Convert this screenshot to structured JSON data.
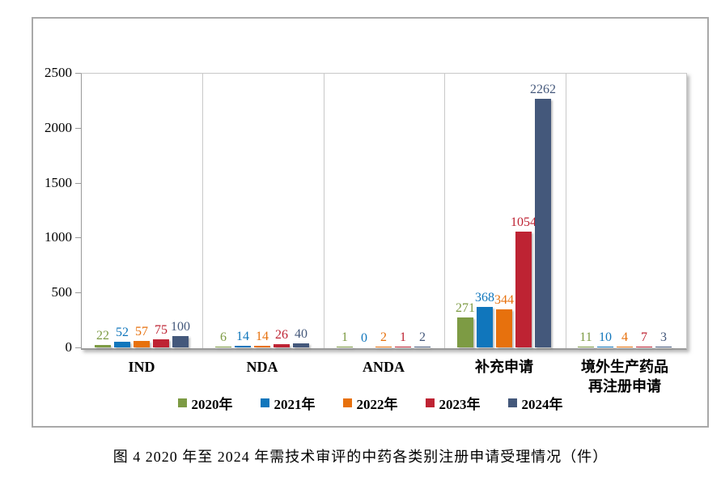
{
  "figure_caption": "图 4  2020 年至 2024 年需技术审评的中药各类别注册申请受理情况（件）",
  "chart_data": {
    "type": "bar",
    "title": "",
    "categories": [
      "IND",
      "NDA",
      "ANDA",
      "补充申请",
      "境外生产药品再注册申请"
    ],
    "category_label_lines": [
      [
        "IND"
      ],
      [
        "NDA"
      ],
      [
        "ANDA"
      ],
      [
        "补充申请"
      ],
      [
        "境外生产药品",
        "再注册申请"
      ]
    ],
    "series": [
      {
        "name": "2020年",
        "color": "#7d9b44",
        "values": [
          22,
          6,
          1,
          271,
          11
        ]
      },
      {
        "name": "2021年",
        "color": "#1076bc",
        "values": [
          52,
          14,
          0,
          368,
          10
        ]
      },
      {
        "name": "2022年",
        "color": "#e7710d",
        "values": [
          57,
          14,
          2,
          344,
          4
        ]
      },
      {
        "name": "2023年",
        "color": "#be2333",
        "values": [
          75,
          26,
          1,
          1054,
          7
        ]
      },
      {
        "name": "2024年",
        "color": "#44587b",
        "values": [
          100,
          40,
          2,
          2262,
          3
        ]
      }
    ],
    "ylim": [
      0,
      2500
    ],
    "yticks": [
      0,
      500,
      1000,
      1500,
      2000,
      2500
    ],
    "ylabel": "",
    "xlabel": "",
    "grid": "vertical category separators only, no horizontal gridlines",
    "legend_position": "bottom",
    "data_labels": true
  }
}
